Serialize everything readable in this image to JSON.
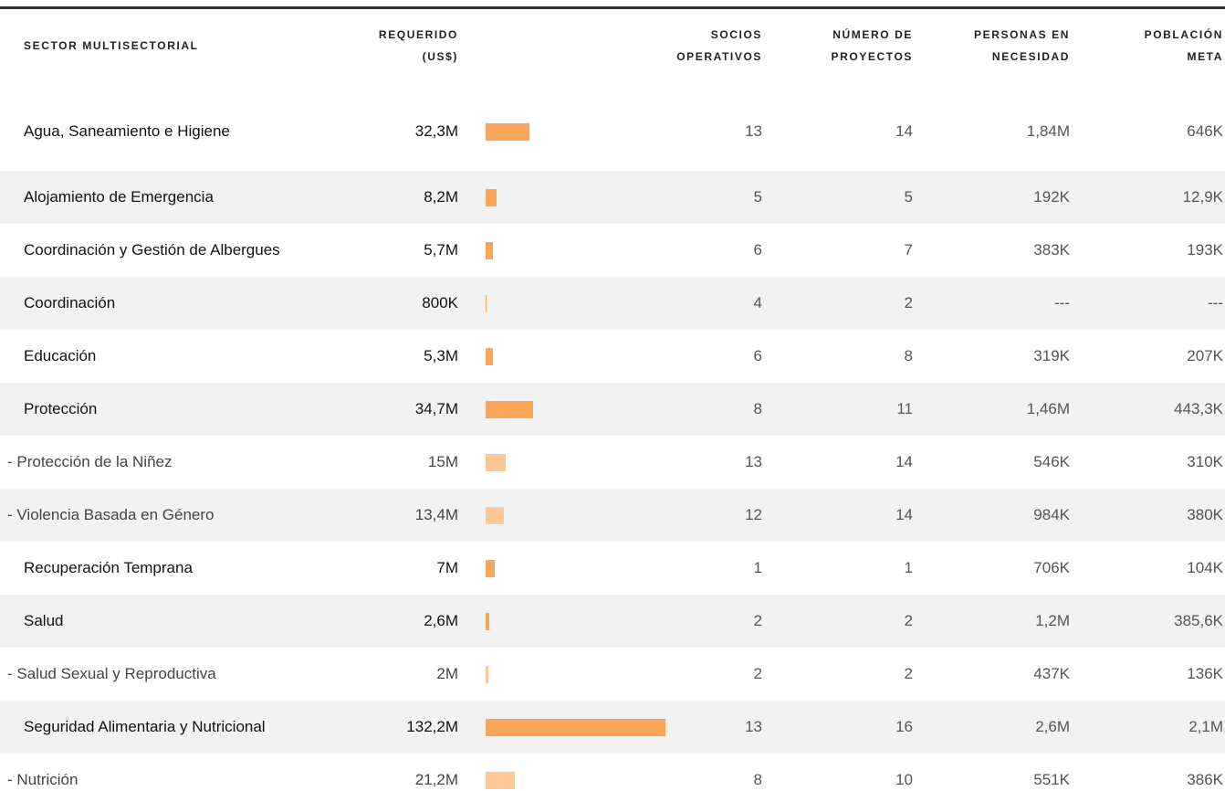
{
  "header": {
    "columns": [
      [
        "SECTOR MULTISECTORIAL"
      ],
      [
        "REQUERIDO",
        "(US$)"
      ],
      [
        "SOCIOS",
        "OPERATIVOS"
      ],
      [
        "NÚMERO DE",
        "PROYECTOS"
      ],
      [
        "PERSONAS EN",
        "NECESIDAD"
      ],
      [
        "POBLACIÓN",
        "META"
      ]
    ]
  },
  "bar_color": "#f9a65a",
  "sub_bar_color": "#fdc896",
  "rows": [
    {
      "sector": "Agua, Saneamiento e Higiene",
      "required": 32300000,
      "required_label": "32,3M",
      "partners": 13,
      "projects": 14,
      "in_need": "1,84M",
      "target": "646K"
    },
    {
      "sector": "Alojamiento de Emergencia",
      "required": 8200000,
      "required_label": "8,2M",
      "partners": 5,
      "projects": 5,
      "in_need": "192K",
      "target": "12,9K"
    },
    {
      "sector": "Coordinación y Gestión de Albergues",
      "required": 5700000,
      "required_label": "5,7M",
      "partners": 6,
      "projects": 7,
      "in_need": "383K",
      "target": "193K"
    },
    {
      "sector": "Coordinación",
      "required": 800000,
      "required_label": "800K",
      "partners": 4,
      "projects": 2,
      "in_need": "---",
      "target": "---"
    },
    {
      "sector": "Educación",
      "required": 5300000,
      "required_label": "5,3M",
      "partners": 6,
      "projects": 8,
      "in_need": "319K",
      "target": "207K"
    },
    {
      "sector": "Protección",
      "required": 34700000,
      "required_label": "34,7M",
      "partners": 8,
      "projects": 11,
      "in_need": "1,46M",
      "target": "443,3K"
    },
    {
      "sector": "- Protección de la Niñez",
      "required": 15000000,
      "required_label": "15M",
      "partners": 13,
      "projects": 14,
      "in_need": "546K",
      "target": "310K"
    },
    {
      "sector": "- Violencia Basada en Género",
      "required": 13400000,
      "required_label": "13,4M",
      "partners": 12,
      "projects": 14,
      "in_need": "984K",
      "target": "380K"
    },
    {
      "sector": "Recuperación Temprana",
      "required": 7000000,
      "required_label": "7M",
      "partners": 1,
      "projects": 1,
      "in_need": "706K",
      "target": "104K"
    },
    {
      "sector": "Salud",
      "required": 2600000,
      "required_label": "2,6M",
      "partners": 2,
      "projects": 2,
      "in_need": "1,2M",
      "target": "385,6K"
    },
    {
      "sector": "- Salud Sexual y Reproductiva",
      "required": 2000000,
      "required_label": "2M",
      "partners": 2,
      "projects": 2,
      "in_need": "437K",
      "target": "136K"
    },
    {
      "sector": "Seguridad Alimentaria y Nutricional",
      "required": 132200000,
      "required_label": "132,2M",
      "partners": 13,
      "projects": 16,
      "in_need": "2,6M",
      "target": "2,1M"
    },
    {
      "sector": "- Nutrición",
      "required": 21200000,
      "required_label": "21,2M",
      "partners": 8,
      "projects": 10,
      "in_need": "551K",
      "target": "386K"
    }
  ]
}
